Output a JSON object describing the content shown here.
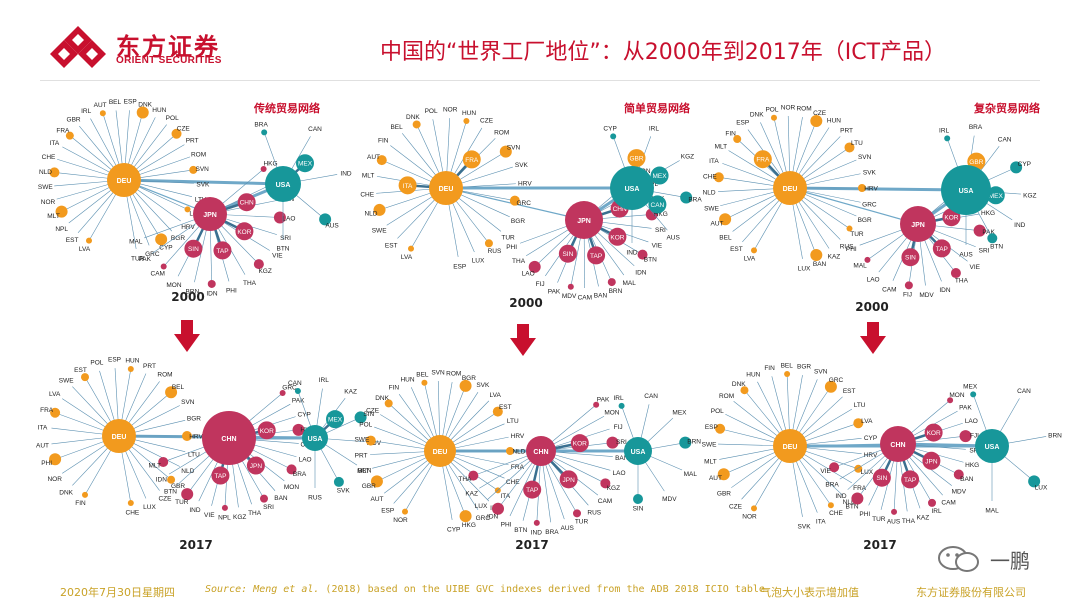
{
  "header": {
    "company_cn": "东方证券",
    "company_en": "ORIENT SECURITIES",
    "title": "中国的“世界工厂地位”：从2000年到2017年（ICT产品）"
  },
  "colors": {
    "brand_red": "#c8102e",
    "deu": "#f29a1e",
    "chn": "#c0355e",
    "usa": "#17979a",
    "footer": "#c9a227"
  },
  "panels": [
    {
      "id": "traditional",
      "label": "传统贸易网络",
      "year_top": "2000",
      "year_bottom": "2017"
    },
    {
      "id": "simple",
      "label": "简单贸易网络",
      "year_top": "2000",
      "year_bottom": "2017"
    },
    {
      "id": "complex",
      "label": "复杂贸易网络",
      "year_top": "2000",
      "year_bottom": "2017"
    }
  ],
  "footer": {
    "date": "2020年7月30日星期四",
    "source_prefix": "Source:",
    "source_authors": " Meng et al.",
    "source_rest": " (2018) based on the UIBE GVC indexes derived from the ADB 2018 ICIO table.",
    "note": "气泡大小表示增加值",
    "company": "东方证券股份有限公司"
  },
  "watermark": {
    "text": "一鹏"
  },
  "networks": [
    {
      "name": "2000 traditional",
      "hubs": [
        {
          "label": "DEU",
          "r": 17,
          "c": "deu",
          "spokes": [
            "LVA",
            "EST",
            "NPL",
            "MLT",
            "NOR",
            "SWE",
            "NLD",
            "CHE",
            "ITA",
            "FRA",
            "GBR",
            "IRL",
            "AUT",
            "BEL",
            "ESP",
            "DNK",
            "HUN",
            "POL",
            "CZE",
            "PRT",
            "ROM",
            "SVN",
            "SVK",
            "LTU",
            "LUX",
            "HRV",
            "BGR",
            "CYP",
            "GRC",
            "TUR"
          ]
        },
        {
          "label": "JPN",
          "r": 17,
          "c": "chn",
          "spokes": [
            "HKG",
            "FIJ",
            "BAN",
            "LAO",
            "SRI",
            "VIE",
            "KGZ",
            "THA",
            "PHI",
            "IDN",
            "BRN",
            "MON",
            "CAM",
            "PAK",
            "MAL"
          ],
          "big": [
            "CHN",
            "KOR",
            "TAP",
            "SIN"
          ]
        },
        {
          "label": "USA",
          "r": 18,
          "c": "usa",
          "spokes": [
            "BRA",
            "CAN",
            "IND",
            "AUS",
            "BTN"
          ],
          "big": [
            "MEX"
          ]
        }
      ]
    },
    {
      "name": "2000 simple",
      "hubs": [
        {
          "label": "DEU",
          "r": 17,
          "c": "deu",
          "spokes": [
            "LVA",
            "EST",
            "SWE",
            "NLD",
            "CHE",
            "MLT",
            "AUT",
            "FIN",
            "BEL",
            "DNK",
            "POL",
            "NOR",
            "HUN",
            "CZE",
            "ROM",
            "SVN",
            "SVK",
            "HRV",
            "GRC",
            "BGR",
            "TUR",
            "RUS",
            "LUX",
            "ESP"
          ],
          "big": [
            "ITA",
            "FRA"
          ]
        },
        {
          "label": "JPN",
          "r": 19,
          "c": "chn",
          "spokes": [
            "MON",
            "NPL",
            "LUX",
            "HKG",
            "SRI",
            "VIE",
            "BTN",
            "IDN",
            "MAL",
            "BRN",
            "BAN",
            "CAM",
            "MDV",
            "PAK",
            "FIJ",
            "LAO",
            "THA",
            "PHI"
          ],
          "big": [
            "CHN",
            "KOR",
            "TAP",
            "SIN"
          ]
        },
        {
          "label": "USA",
          "r": 22,
          "c": "usa",
          "spokes": [
            "CYP",
            "IRL",
            "KGZ",
            "BRA",
            "AUS",
            "IND"
          ],
          "big": [
            "GBR",
            "MEX",
            "CAN"
          ]
        }
      ]
    },
    {
      "name": "2000 complex",
      "hubs": [
        {
          "label": "DEU",
          "r": 17,
          "c": "deu",
          "spokes": [
            "LVA",
            "EST",
            "BEL",
            "AUT",
            "SWE",
            "NLD",
            "CHE",
            "ITA",
            "MLT",
            "FIN",
            "ESP",
            "DNK",
            "POL",
            "NOR",
            "ROM",
            "CZE",
            "HUN",
            "PRT",
            "LTU",
            "SVN",
            "SVK",
            "HRV",
            "GRC",
            "BGR",
            "TUR",
            "RUS",
            "KAZ",
            "BAN",
            "LUX"
          ],
          "big": [
            "FRA"
          ]
        },
        {
          "label": "JPN",
          "r": 18,
          "c": "chn",
          "spokes": [
            "CHN",
            "NPL",
            "HKG",
            "PAK",
            "SRI",
            "VIE",
            "THA",
            "IDN",
            "MDV",
            "FIJ",
            "CAM",
            "LAO",
            "MAL",
            "PHI"
          ],
          "big": [
            "KOR",
            "TAP",
            "SIN"
          ]
        },
        {
          "label": "USA",
          "r": 25,
          "c": "usa",
          "spokes": [
            "IRL",
            "BRA",
            "CAN",
            "CYP",
            "KGZ",
            "IND",
            "BTN",
            "AUS"
          ],
          "big": [
            "GBR",
            "MEX"
          ]
        }
      ]
    },
    {
      "name": "2017 traditional",
      "hubs": [
        {
          "label": "DEU",
          "r": 17,
          "c": "deu",
          "spokes": [
            "FIN",
            "DNK",
            "NOR",
            "PHI",
            "AUT",
            "ITA",
            "FRA",
            "LVA",
            "SWE",
            "EST",
            "POL",
            "ESP",
            "HUN",
            "PRT",
            "ROM",
            "BEL",
            "SVN",
            "BGR",
            "HRV",
            "LTU",
            "NLD",
            "GBR",
            "CZE",
            "LUX",
            "CHE"
          ]
        },
        {
          "label": "CHN",
          "r": 27,
          "c": "chn",
          "spokes": [
            "GRC",
            "PAK",
            "CYP",
            "HKG",
            "CAM",
            "LAO",
            "BRA",
            "MON",
            "BAN",
            "SRI",
            "THA",
            "KGZ",
            "NPL",
            "VIE",
            "IND",
            "TUR",
            "BTN",
            "IDN",
            "MLT"
          ],
          "big": [
            "KOR",
            "JPN",
            "TAP"
          ]
        },
        {
          "label": "USA",
          "r": 13,
          "c": "usa",
          "spokes": [
            "CAN",
            "IRL",
            "KAZ",
            "SIN",
            "MDV",
            "BRN",
            "SVK",
            "RUS"
          ],
          "big": [
            "MEX"
          ]
        }
      ]
    },
    {
      "name": "2017 simple",
      "hubs": [
        {
          "label": "DEU",
          "r": 16,
          "c": "deu",
          "spokes": [
            "NOR",
            "ESP",
            "AUT",
            "GBR",
            "MLT",
            "PRT",
            "SWE",
            "POL",
            "CZE",
            "DNK",
            "FIN",
            "HUN",
            "BEL",
            "SVN",
            "ROM",
            "BGR",
            "SVK",
            "LVA",
            "EST",
            "LTU",
            "HRV",
            "NLD",
            "FRA",
            "CHE",
            "ITA",
            "IRL",
            "GRC",
            "HKG",
            "CYP"
          ]
        },
        {
          "label": "CHN",
          "r": 15,
          "c": "chn",
          "spokes": [
            "PAK",
            "MON",
            "FIJ",
            "SRI",
            "BAN",
            "LAO",
            "KGZ",
            "CAM",
            "RUS",
            "TUR",
            "AUS",
            "BRA",
            "IND",
            "BTN",
            "PHI",
            "IDN",
            "LUX",
            "KAZ",
            "THA"
          ],
          "big": [
            "KOR",
            "JPN",
            "TAP"
          ]
        },
        {
          "label": "USA",
          "r": 14,
          "c": "usa",
          "spokes": [
            "IRL",
            "CAN",
            "MEX",
            "BRN",
            "MAL",
            "MDV",
            "SIN"
          ]
        }
      ]
    },
    {
      "name": "2017 complex",
      "hubs": [
        {
          "label": "DEU",
          "r": 17,
          "c": "deu",
          "spokes": [
            "NOR",
            "CZE",
            "GBR",
            "AUT",
            "MLT",
            "SWE",
            "ESP",
            "POL",
            "ROM",
            "DNK",
            "HUN",
            "FIN",
            "BEL",
            "BGR",
            "SVN",
            "GRC",
            "EST",
            "LTU",
            "LVA",
            "CYP",
            "HRV",
            "LUX",
            "FRA",
            "NLD",
            "CHE",
            "ITA",
            "SVK"
          ]
        },
        {
          "label": "CHN",
          "r": 18,
          "c": "chn",
          "spokes": [
            "MON",
            "PAK",
            "LAO",
            "FJI",
            "SRI",
            "HKG",
            "BAN",
            "MDV",
            "CAM",
            "IRL",
            "KAZ",
            "THA",
            "AUS",
            "TUR",
            "PHI",
            "BTN",
            "IND",
            "BRA",
            "VIE"
          ],
          "big": [
            "KOR",
            "JPN",
            "TAP",
            "SIN"
          ]
        },
        {
          "label": "USA",
          "r": 17,
          "c": "usa",
          "spokes": [
            "MEX",
            "CAN",
            "BRN",
            "LUX",
            "MAL"
          ]
        }
      ]
    }
  ]
}
